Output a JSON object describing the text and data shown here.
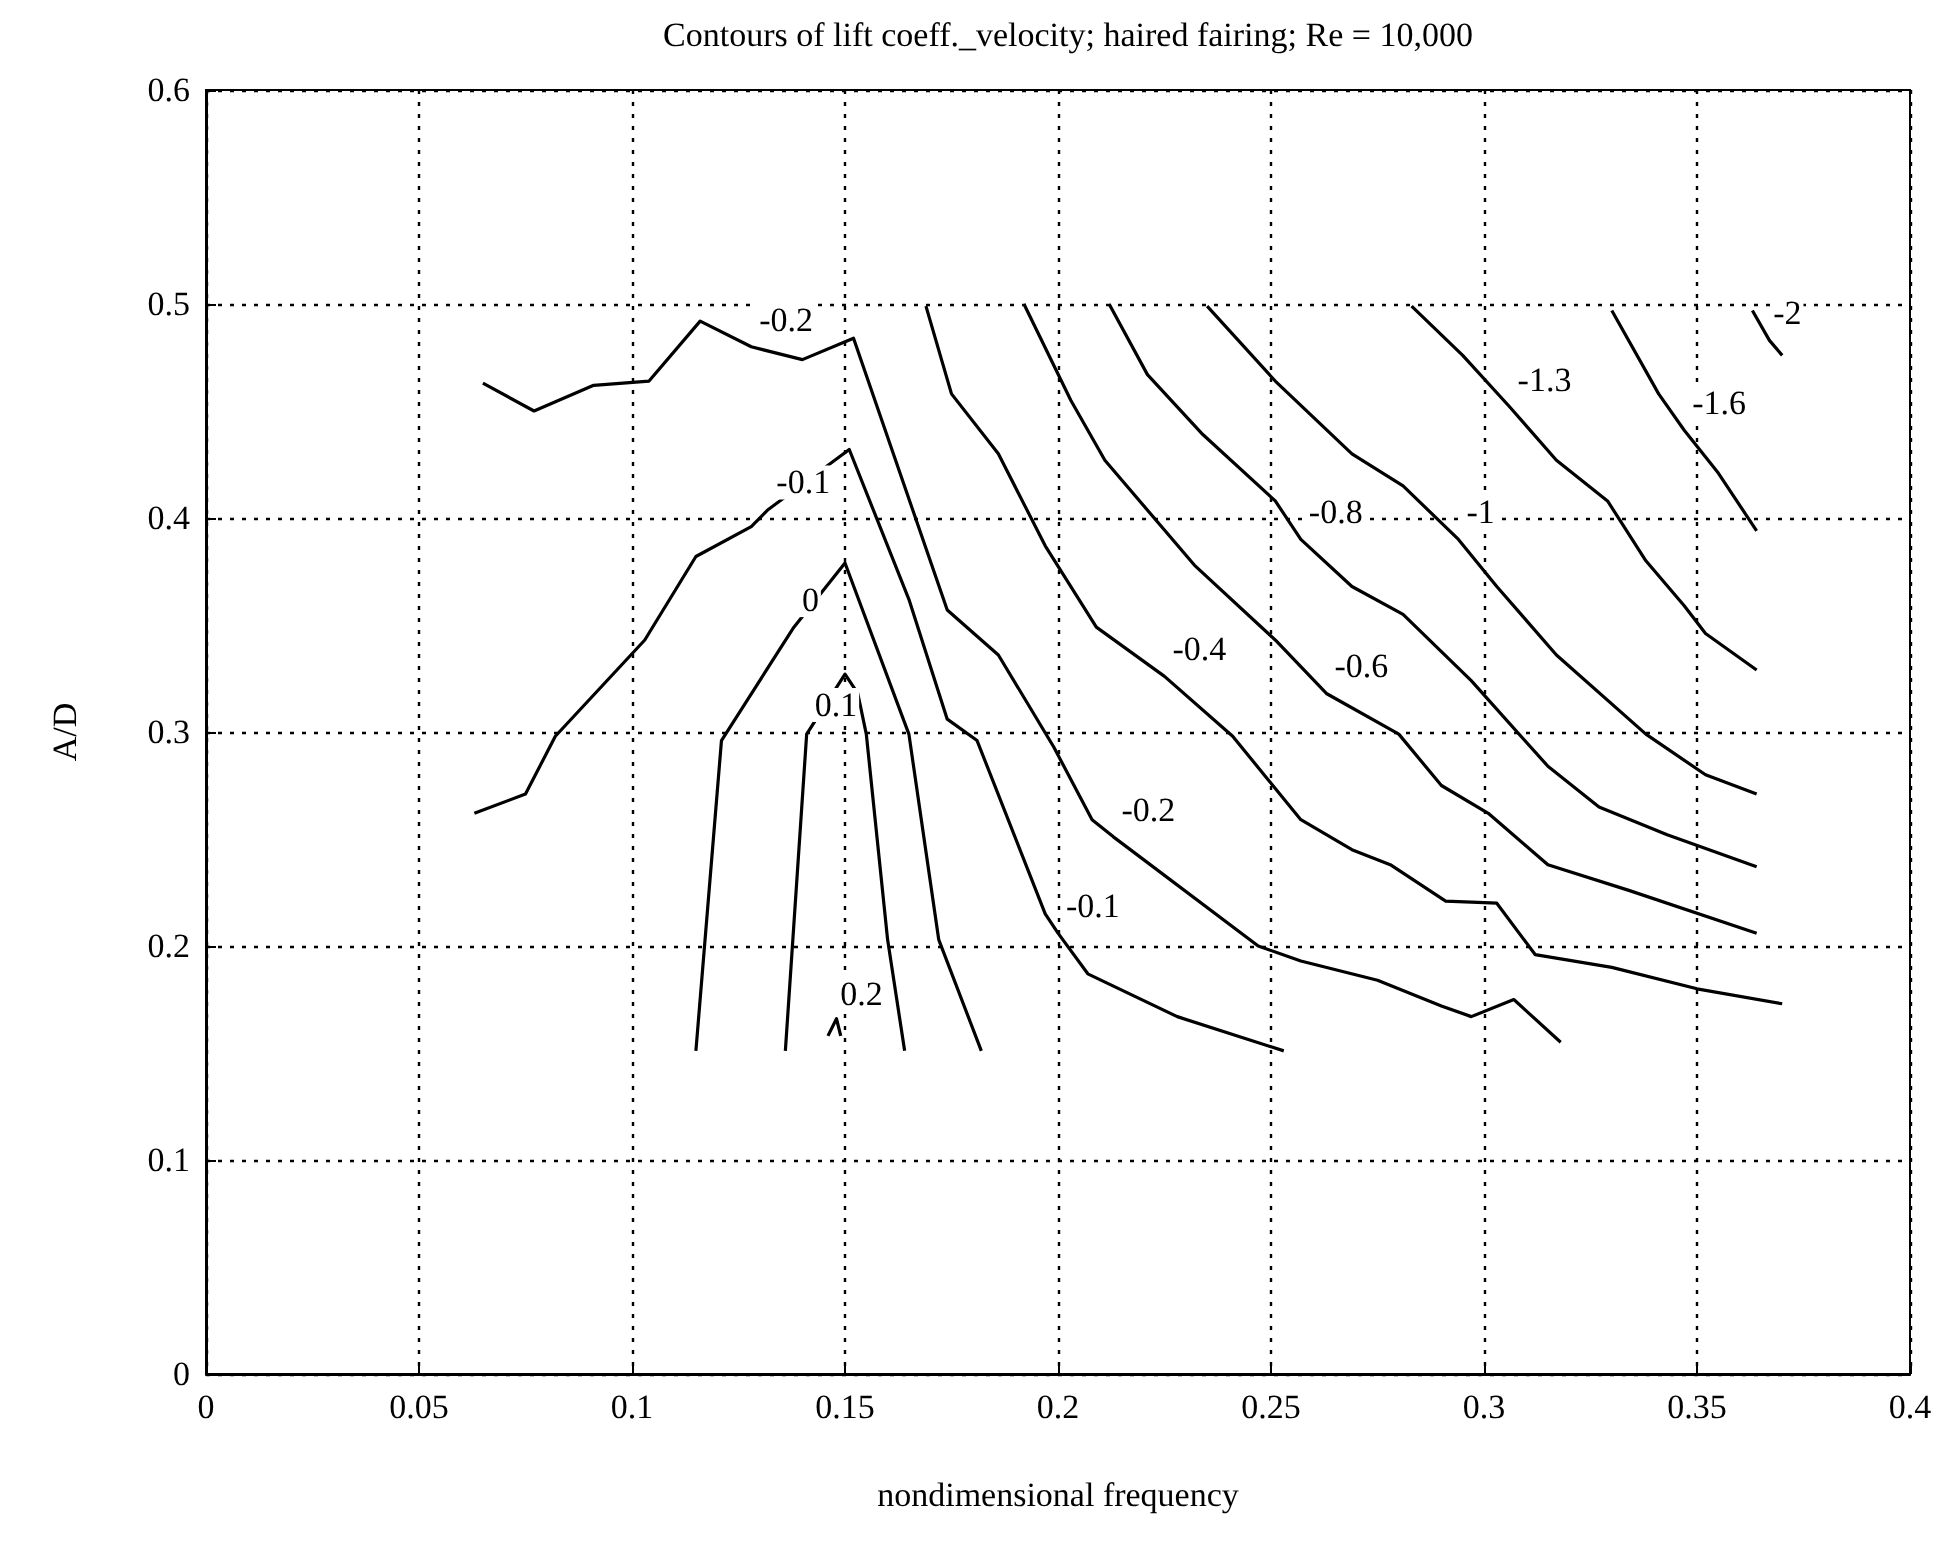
{
  "chart_data": {
    "type": "line",
    "title": "Contours of lift coeff._velocity; haired fairing; Re = 10,000",
    "xlabel": "nondimensional frequency",
    "ylabel": "A/D",
    "xlim": [
      0,
      0.4
    ],
    "xticks": [
      0,
      0.05,
      0.1,
      0.15,
      0.2,
      0.25,
      0.3,
      0.35,
      0.4
    ],
    "ylim": [
      0,
      0.6
    ],
    "yticks": [
      0,
      0.1,
      0.2,
      0.3,
      0.4,
      0.5,
      0.6
    ],
    "grid": true,
    "marker": "none",
    "line_style": "solid",
    "series": [
      {
        "color": "#000000",
        "x": [
          0.065,
          0.077,
          0.091,
          0.104,
          0.116,
          0.128,
          0.14,
          0.152,
          0.174,
          0.186,
          0.199,
          0.208,
          0.213,
          0.247,
          0.257,
          0.275,
          0.29,
          0.297,
          0.307,
          0.318
        ],
        "values": [
          0.463,
          0.45,
          0.462,
          0.464,
          0.492,
          0.48,
          0.474,
          0.484,
          0.357,
          0.336,
          0.293,
          0.259,
          0.251,
          0.2,
          0.193,
          0.184,
          0.172,
          0.167,
          0.175,
          0.155
        ]
      },
      {
        "color": "#000000",
        "x": [
          0.063,
          0.075,
          0.082,
          0.103,
          0.115,
          0.128,
          0.132,
          0.151,
          0.165,
          0.174,
          0.181,
          0.197,
          0.2,
          0.207,
          0.228,
          0.253
        ],
        "values": [
          0.262,
          0.271,
          0.298,
          0.343,
          0.382,
          0.396,
          0.404,
          0.432,
          0.362,
          0.306,
          0.296,
          0.215,
          0.206,
          0.187,
          0.167,
          0.151
        ]
      },
      {
        "color": "#000000",
        "x": [
          0.115,
          0.121,
          0.138,
          0.15,
          0.165,
          0.172,
          0.182
        ],
        "values": [
          0.151,
          0.296,
          0.349,
          0.379,
          0.299,
          0.203,
          0.151
        ]
      },
      {
        "color": "#000000",
        "x": [
          0.136,
          0.141,
          0.15,
          0.153,
          0.155,
          0.16,
          0.164
        ],
        "values": [
          0.151,
          0.299,
          0.327,
          0.318,
          0.299,
          0.203,
          0.151
        ]
      },
      {
        "color": "#000000",
        "x": [
          0.146,
          0.148,
          0.149
        ],
        "values": [
          0.158,
          0.166,
          0.158
        ]
      },
      {
        "color": "#000000",
        "x": [
          0.169,
          0.175,
          0.186,
          0.197,
          0.209,
          0.225,
          0.241,
          0.257,
          0.269,
          0.278,
          0.291,
          0.303,
          0.312,
          0.33,
          0.35,
          0.37
        ],
        "values": [
          0.499,
          0.458,
          0.43,
          0.387,
          0.349,
          0.326,
          0.298,
          0.259,
          0.245,
          0.238,
          0.221,
          0.22,
          0.196,
          0.19,
          0.18,
          0.173
        ]
      },
      {
        "color": "#000000",
        "x": [
          0.192,
          0.203,
          0.211,
          0.232,
          0.251,
          0.263,
          0.28,
          0.29,
          0.301,
          0.315,
          0.334,
          0.364
        ],
        "values": [
          0.5,
          0.455,
          0.427,
          0.378,
          0.343,
          0.318,
          0.299,
          0.275,
          0.262,
          0.238,
          0.226,
          0.206
        ]
      },
      {
        "color": "#000000",
        "x": [
          0.212,
          0.221,
          0.234,
          0.251,
          0.257,
          0.269,
          0.281,
          0.297,
          0.315,
          0.327,
          0.343,
          0.364
        ],
        "values": [
          0.5,
          0.467,
          0.439,
          0.408,
          0.39,
          0.368,
          0.355,
          0.324,
          0.284,
          0.265,
          0.252,
          0.237
        ]
      },
      {
        "color": "#000000",
        "x": [
          0.235,
          0.251,
          0.269,
          0.281,
          0.294,
          0.303,
          0.317,
          0.338,
          0.352,
          0.364
        ],
        "values": [
          0.499,
          0.464,
          0.43,
          0.415,
          0.39,
          0.368,
          0.336,
          0.299,
          0.28,
          0.271
        ]
      },
      {
        "color": "#000000",
        "x": [
          0.283,
          0.295,
          0.306,
          0.317,
          0.329,
          0.338,
          0.347,
          0.352,
          0.364
        ],
        "values": [
          0.499,
          0.476,
          0.452,
          0.427,
          0.408,
          0.38,
          0.359,
          0.346,
          0.329
        ]
      },
      {
        "color": "#000000",
        "x": [
          0.33,
          0.341,
          0.347,
          0.355,
          0.364
        ],
        "values": [
          0.497,
          0.458,
          0.441,
          0.421,
          0.394
        ]
      },
      {
        "color": "#000000",
        "x": [
          0.363,
          0.367,
          0.37
        ],
        "values": [
          0.497,
          0.483,
          0.476
        ]
      }
    ],
    "annotations": [
      {
        "text": "-0.2",
        "x": 0.128,
        "y": 0.48
      },
      {
        "text": "-0.1",
        "x": 0.132,
        "y": 0.404
      },
      {
        "text": "0",
        "x": 0.138,
        "y": 0.349
      },
      {
        "text": "0.1",
        "x": 0.141,
        "y": 0.3
      },
      {
        "text": "0.2",
        "x": 0.147,
        "y": 0.165
      },
      {
        "text": "-0.1",
        "x": 0.2,
        "y": 0.206
      },
      {
        "text": "-0.2",
        "x": 0.213,
        "y": 0.251
      },
      {
        "text": "-0.4",
        "x": 0.225,
        "y": 0.326
      },
      {
        "text": "-0.6",
        "x": 0.263,
        "y": 0.318
      },
      {
        "text": "-0.8",
        "x": 0.257,
        "y": 0.39
      },
      {
        "text": "-1",
        "x": 0.294,
        "y": 0.39
      },
      {
        "text": "-1.3",
        "x": 0.306,
        "y": 0.452
      },
      {
        "text": "-1.6",
        "x": 0.347,
        "y": 0.441
      },
      {
        "text": "-2",
        "x": 0.366,
        "y": 0.483
      }
    ]
  }
}
